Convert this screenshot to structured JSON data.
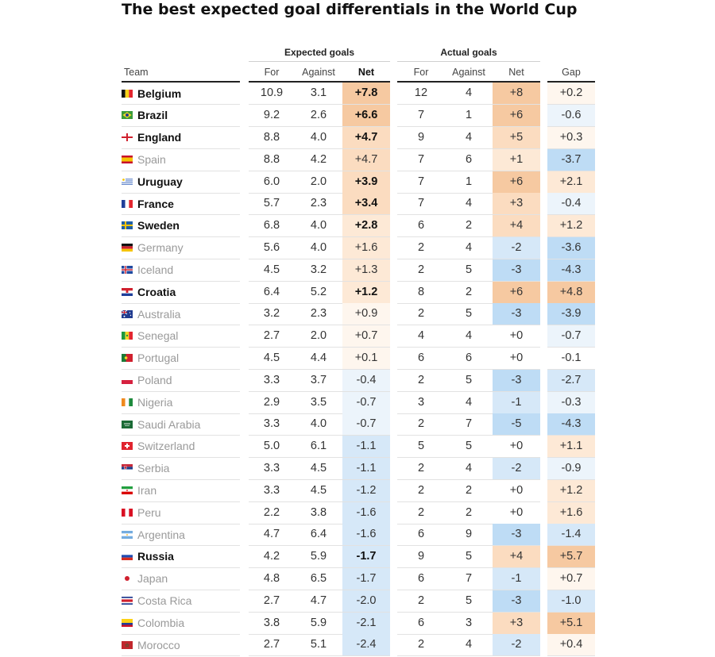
{
  "title": "The best expected goal differentials in the World Cup",
  "headers": {
    "group_expected": "Expected goals",
    "group_actual": "Actual goals",
    "team": "Team",
    "xg_for": "For",
    "xg_against": "Against",
    "xg_net": "Net",
    "ag_for": "For",
    "ag_against": "Against",
    "ag_net": "Net",
    "gap": "Gap"
  },
  "colors": {
    "pos_strong": "#f6c9a1",
    "pos_mid": "#fbdcc0",
    "pos_light": "#fde9d6",
    "pos_faint": "#fef6ee",
    "neg_strong": "#9fcbef",
    "neg_mid": "#bedcf5",
    "neg_light": "#d6e8f8",
    "neg_faint": "#ecf4fb"
  },
  "chart_data": {
    "type": "table",
    "columns": [
      "Team",
      "Expected goals For",
      "Expected goals Against",
      "Expected goals Net",
      "Actual goals For",
      "Actual goals Against",
      "Actual goals Net",
      "Gap"
    ],
    "rows": [
      {
        "team": "Belgium",
        "flag": "belgium-flag-icon",
        "bold": true,
        "xg_for": "10.9",
        "xg_against": "3.1",
        "xg_net": "+7.8",
        "ag_for": "12",
        "ag_against": "4",
        "ag_net": "+8",
        "gap": "+0.2"
      },
      {
        "team": "Brazil",
        "flag": "brazil-flag-icon",
        "bold": true,
        "xg_for": "9.2",
        "xg_against": "2.6",
        "xg_net": "+6.6",
        "ag_for": "7",
        "ag_against": "1",
        "ag_net": "+6",
        "gap": "-0.6"
      },
      {
        "team": "England",
        "flag": "england-flag-icon",
        "bold": true,
        "xg_for": "8.8",
        "xg_against": "4.0",
        "xg_net": "+4.7",
        "ag_for": "9",
        "ag_against": "4",
        "ag_net": "+5",
        "gap": "+0.3"
      },
      {
        "team": "Spain",
        "flag": "spain-flag-icon",
        "bold": false,
        "xg_for": "8.8",
        "xg_against": "4.2",
        "xg_net": "+4.7",
        "ag_for": "7",
        "ag_against": "6",
        "ag_net": "+1",
        "gap": "-3.7"
      },
      {
        "team": "Uruguay",
        "flag": "uruguay-flag-icon",
        "bold": true,
        "xg_for": "6.0",
        "xg_against": "2.0",
        "xg_net": "+3.9",
        "ag_for": "7",
        "ag_against": "1",
        "ag_net": "+6",
        "gap": "+2.1"
      },
      {
        "team": "France",
        "flag": "france-flag-icon",
        "bold": true,
        "xg_for": "5.7",
        "xg_against": "2.3",
        "xg_net": "+3.4",
        "ag_for": "7",
        "ag_against": "4",
        "ag_net": "+3",
        "gap": "-0.4"
      },
      {
        "team": "Sweden",
        "flag": "sweden-flag-icon",
        "bold": true,
        "xg_for": "6.8",
        "xg_against": "4.0",
        "xg_net": "+2.8",
        "ag_for": "6",
        "ag_against": "2",
        "ag_net": "+4",
        "gap": "+1.2"
      },
      {
        "team": "Germany",
        "flag": "germany-flag-icon",
        "bold": false,
        "xg_for": "5.6",
        "xg_against": "4.0",
        "xg_net": "+1.6",
        "ag_for": "2",
        "ag_against": "4",
        "ag_net": "-2",
        "gap": "-3.6"
      },
      {
        "team": "Iceland",
        "flag": "iceland-flag-icon",
        "bold": false,
        "xg_for": "4.5",
        "xg_against": "3.2",
        "xg_net": "+1.3",
        "ag_for": "2",
        "ag_against": "5",
        "ag_net": "-3",
        "gap": "-4.3"
      },
      {
        "team": "Croatia",
        "flag": "croatia-flag-icon",
        "bold": true,
        "xg_for": "6.4",
        "xg_against": "5.2",
        "xg_net": "+1.2",
        "ag_for": "8",
        "ag_against": "2",
        "ag_net": "+6",
        "gap": "+4.8"
      },
      {
        "team": "Australia",
        "flag": "australia-flag-icon",
        "bold": false,
        "xg_for": "3.2",
        "xg_against": "2.3",
        "xg_net": "+0.9",
        "ag_for": "2",
        "ag_against": "5",
        "ag_net": "-3",
        "gap": "-3.9"
      },
      {
        "team": "Senegal",
        "flag": "senegal-flag-icon",
        "bold": false,
        "xg_for": "2.7",
        "xg_against": "2.0",
        "xg_net": "+0.7",
        "ag_for": "4",
        "ag_against": "4",
        "ag_net": "+0",
        "gap": "-0.7"
      },
      {
        "team": "Portugal",
        "flag": "portugal-flag-icon",
        "bold": false,
        "xg_for": "4.5",
        "xg_against": "4.4",
        "xg_net": "+0.1",
        "ag_for": "6",
        "ag_against": "6",
        "ag_net": "+0",
        "gap": "-0.1"
      },
      {
        "team": "Poland",
        "flag": "poland-flag-icon",
        "bold": false,
        "xg_for": "3.3",
        "xg_against": "3.7",
        "xg_net": "-0.4",
        "ag_for": "2",
        "ag_against": "5",
        "ag_net": "-3",
        "gap": "-2.7"
      },
      {
        "team": "Nigeria",
        "flag": "nigeria-flag-icon",
        "bold": false,
        "xg_for": "2.9",
        "xg_against": "3.5",
        "xg_net": "-0.7",
        "ag_for": "3",
        "ag_against": "4",
        "ag_net": "-1",
        "gap": "-0.3"
      },
      {
        "team": "Saudi Arabia",
        "flag": "saudi-arabia-flag-icon",
        "bold": false,
        "xg_for": "3.3",
        "xg_against": "4.0",
        "xg_net": "-0.7",
        "ag_for": "2",
        "ag_against": "7",
        "ag_net": "-5",
        "gap": "-4.3"
      },
      {
        "team": "Switzerland",
        "flag": "switzerland-flag-icon",
        "bold": false,
        "xg_for": "5.0",
        "xg_against": "6.1",
        "xg_net": "-1.1",
        "ag_for": "5",
        "ag_against": "5",
        "ag_net": "+0",
        "gap": "+1.1"
      },
      {
        "team": "Serbia",
        "flag": "serbia-flag-icon",
        "bold": false,
        "xg_for": "3.3",
        "xg_against": "4.5",
        "xg_net": "-1.1",
        "ag_for": "2",
        "ag_against": "4",
        "ag_net": "-2",
        "gap": "-0.9"
      },
      {
        "team": "Iran",
        "flag": "iran-flag-icon",
        "bold": false,
        "xg_for": "3.3",
        "xg_against": "4.5",
        "xg_net": "-1.2",
        "ag_for": "2",
        "ag_against": "2",
        "ag_net": "+0",
        "gap": "+1.2"
      },
      {
        "team": "Peru",
        "flag": "peru-flag-icon",
        "bold": false,
        "xg_for": "2.2",
        "xg_against": "3.8",
        "xg_net": "-1.6",
        "ag_for": "2",
        "ag_against": "2",
        "ag_net": "+0",
        "gap": "+1.6"
      },
      {
        "team": "Argentina",
        "flag": "argentina-flag-icon",
        "bold": false,
        "xg_for": "4.7",
        "xg_against": "6.4",
        "xg_net": "-1.6",
        "ag_for": "6",
        "ag_against": "9",
        "ag_net": "-3",
        "gap": "-1.4"
      },
      {
        "team": "Russia",
        "flag": "russia-flag-icon",
        "bold": true,
        "xg_for": "4.2",
        "xg_against": "5.9",
        "xg_net": "-1.7",
        "ag_for": "9",
        "ag_against": "5",
        "ag_net": "+4",
        "gap": "+5.7"
      },
      {
        "team": "Japan",
        "flag": "japan-flag-icon",
        "bold": false,
        "xg_for": "4.8",
        "xg_against": "6.5",
        "xg_net": "-1.7",
        "ag_for": "6",
        "ag_against": "7",
        "ag_net": "-1",
        "gap": "+0.7"
      },
      {
        "team": "Costa Rica",
        "flag": "costa-rica-flag-icon",
        "bold": false,
        "xg_for": "2.7",
        "xg_against": "4.7",
        "xg_net": "-2.0",
        "ag_for": "2",
        "ag_against": "5",
        "ag_net": "-3",
        "gap": "-1.0"
      },
      {
        "team": "Colombia",
        "flag": "colombia-flag-icon",
        "bold": false,
        "xg_for": "3.8",
        "xg_against": "5.9",
        "xg_net": "-2.1",
        "ag_for": "6",
        "ag_against": "3",
        "ag_net": "+3",
        "gap": "+5.1"
      },
      {
        "team": "Morocco",
        "flag": "morocco-flag-icon",
        "bold": false,
        "xg_for": "2.7",
        "xg_against": "5.1",
        "xg_net": "-2.4",
        "ag_for": "2",
        "ag_against": "4",
        "ag_net": "-2",
        "gap": "+0.4"
      }
    ]
  }
}
